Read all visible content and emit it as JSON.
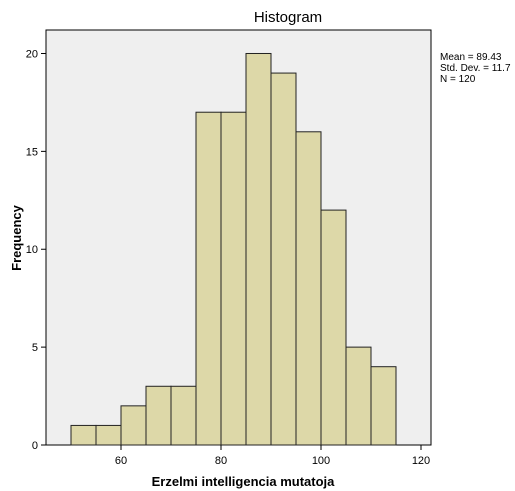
{
  "chart_data": {
    "type": "bar",
    "title": "Histogram",
    "xlabel": "Erzelmi intelligencia mutatoja",
    "ylabel": "Frequency",
    "xlim": [
      45,
      122
    ],
    "ylim": [
      0,
      21.2
    ],
    "x_ticks": [
      60,
      80,
      100,
      120
    ],
    "y_ticks": [
      0,
      5,
      10,
      15,
      20
    ],
    "bin_width": 5,
    "bins": [
      {
        "start": 50,
        "end": 55,
        "value": 1
      },
      {
        "start": 55,
        "end": 60,
        "value": 1
      },
      {
        "start": 60,
        "end": 65,
        "value": 2
      },
      {
        "start": 65,
        "end": 70,
        "value": 3
      },
      {
        "start": 70,
        "end": 75,
        "value": 3
      },
      {
        "start": 75,
        "end": 80,
        "value": 17
      },
      {
        "start": 80,
        "end": 85,
        "value": 17
      },
      {
        "start": 85,
        "end": 90,
        "value": 20
      },
      {
        "start": 90,
        "end": 95,
        "value": 19
      },
      {
        "start": 95,
        "end": 100,
        "value": 16
      },
      {
        "start": 100,
        "end": 105,
        "value": 12
      },
      {
        "start": 105,
        "end": 110,
        "value": 5
      },
      {
        "start": 110,
        "end": 115,
        "value": 4
      }
    ],
    "grid": false,
    "stats": {
      "mean": "Mean = 89.43",
      "std_dev": "Std. Dev. = 11.7",
      "n": "N = 120"
    },
    "colors": {
      "bar_fill": "#ddd8a8",
      "bar_stroke": "#222222",
      "plot_background": "#efefef"
    }
  }
}
